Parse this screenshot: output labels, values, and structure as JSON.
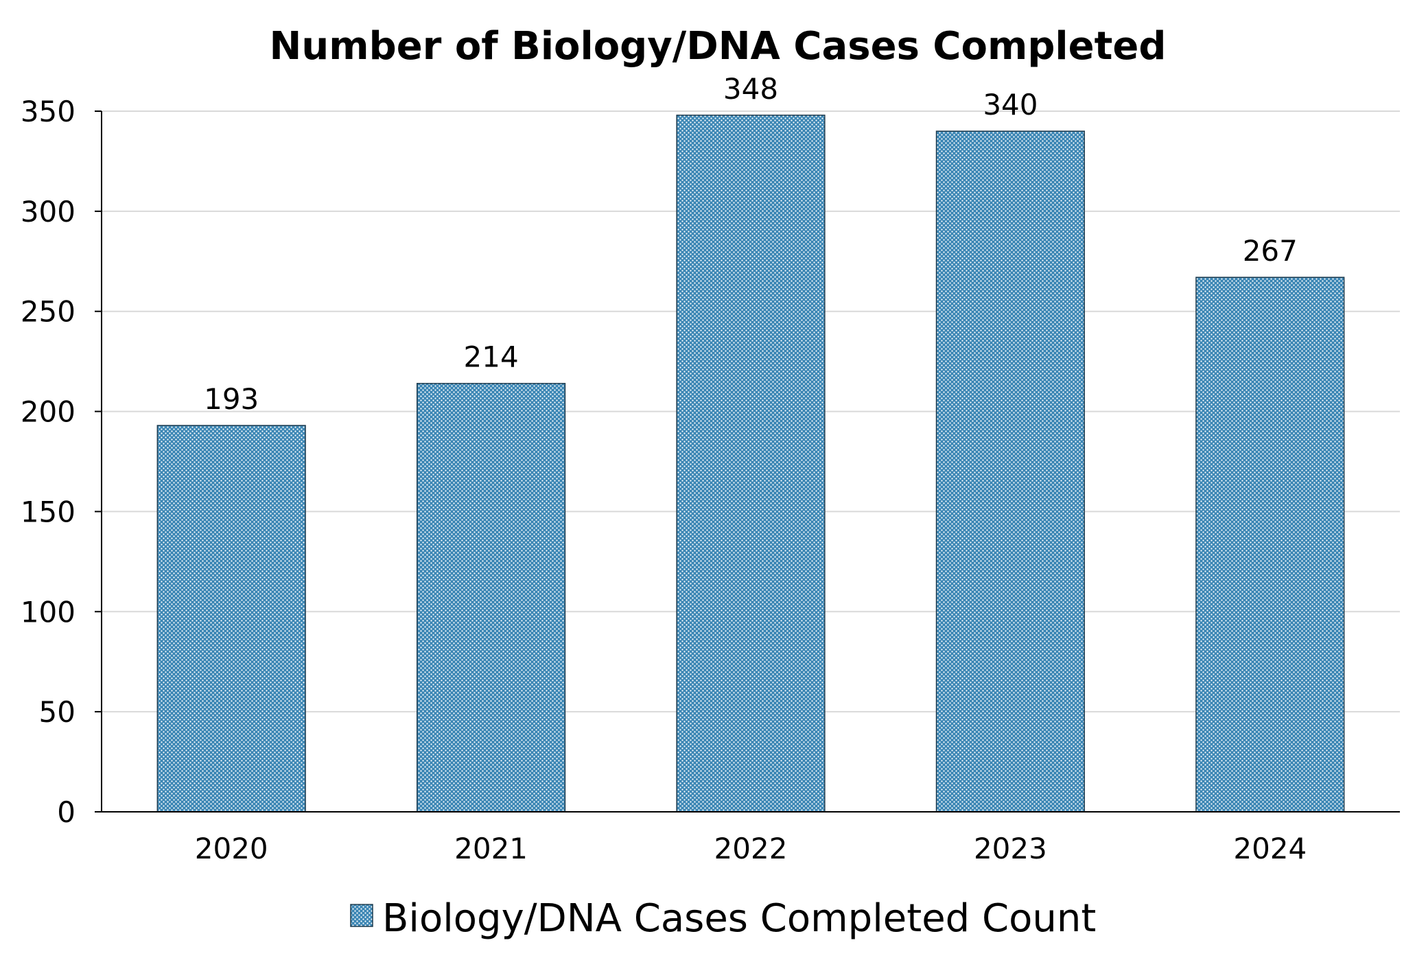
{
  "chart_data": {
    "type": "bar",
    "title": "Number of Biology/DNA Cases Completed",
    "categories": [
      "2020",
      "2021",
      "2022",
      "2023",
      "2024"
    ],
    "series": [
      {
        "name": "Biology/DNA Cases Completed Count",
        "values": [
          193,
          214,
          348,
          340,
          267
        ]
      }
    ],
    "data_labels": [
      "193",
      "214",
      "348",
      "340",
      "267"
    ],
    "y_ticks": [
      0,
      50,
      100,
      150,
      200,
      250,
      300,
      350
    ],
    "ylim": [
      0,
      350
    ],
    "xlabel": "",
    "ylabel": "",
    "grid": true,
    "legend_position": "bottom",
    "colors": {
      "bar_fill": "#3d87b5",
      "bar_dots": "#ffffff",
      "bar_border": "#1f3b4d",
      "grid": "#d9d9d9",
      "axis": "#000000"
    }
  }
}
